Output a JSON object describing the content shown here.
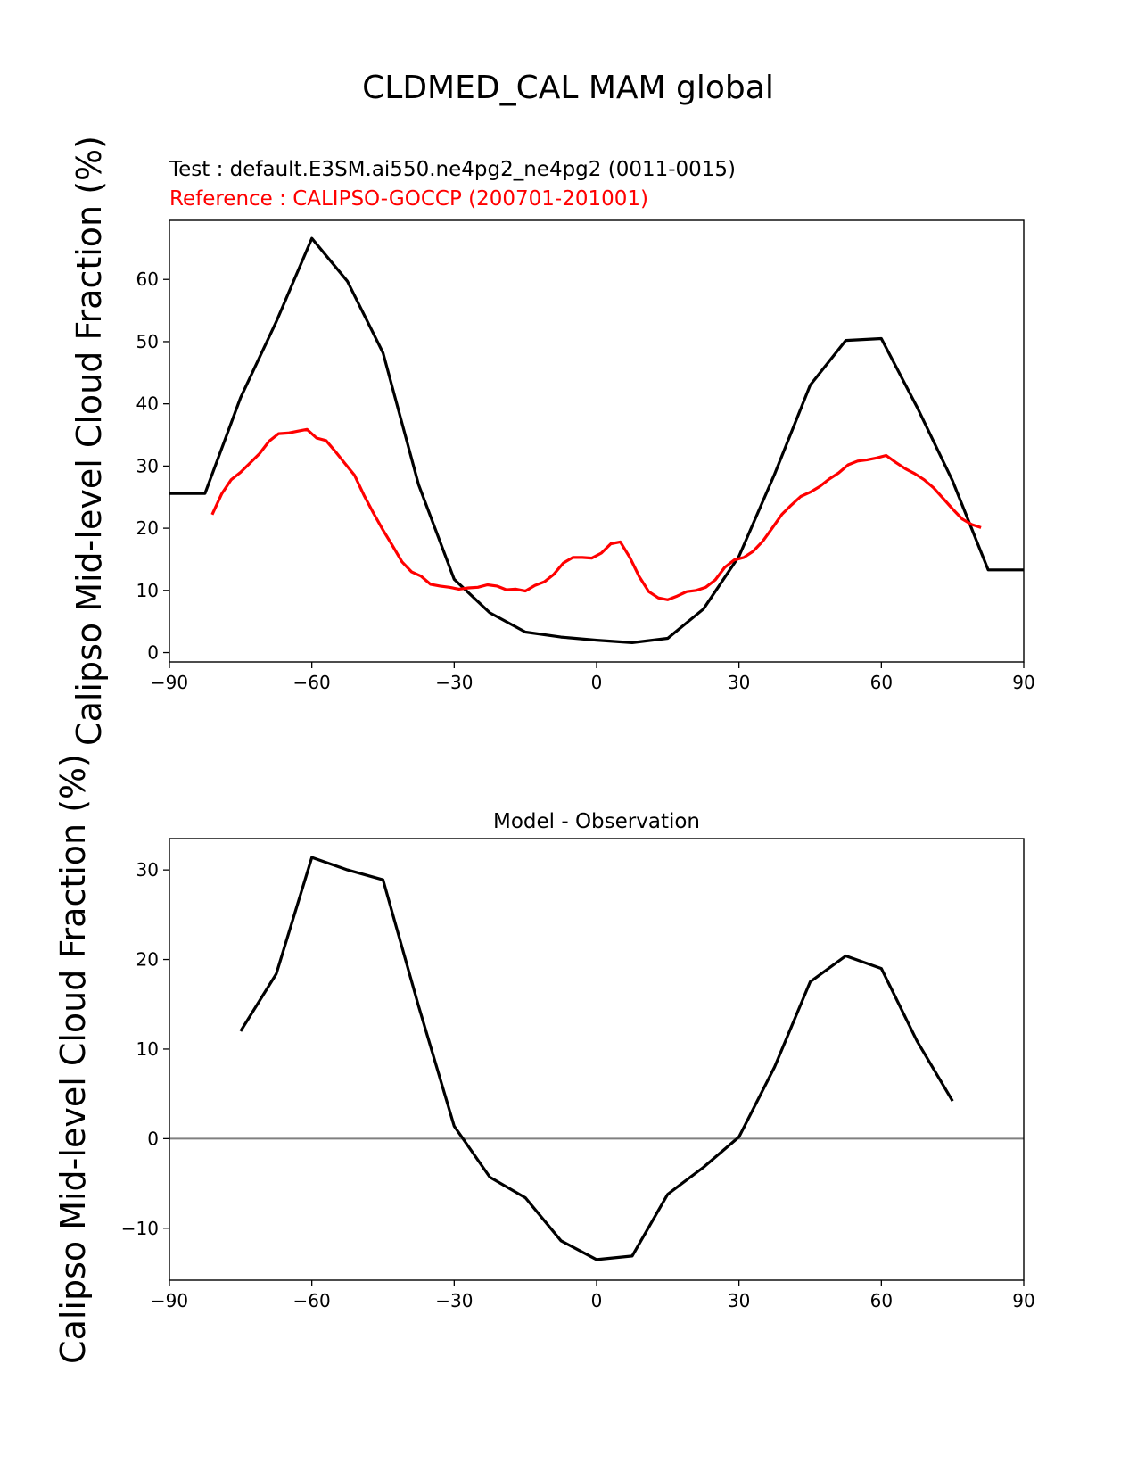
{
  "figure": {
    "title": "CLDMED_CAL MAM global",
    "test_label": "Test : default.E3SM.ai550.ne4pg2_ne4pg2 (0011-0015)",
    "reference_label": "Reference : CALIPSO-GOCCP (200701-201001)"
  },
  "colors": {
    "test": "#000000",
    "reference": "#ff0000",
    "zero_line": "#808080",
    "text": "#000000",
    "reference_text": "#ff0000"
  },
  "chart_data": [
    {
      "type": "line",
      "title": "",
      "ylabel": "Calipso Mid-level Cloud Fraction (%)",
      "xlabel": "",
      "xlim": [
        -90,
        90
      ],
      "ylim": [
        -1.5,
        69.5
      ],
      "xticks": [
        -90,
        -60,
        -30,
        0,
        30,
        60,
        90
      ],
      "xtick_labels": [
        "−90",
        "−60",
        "−30",
        "0",
        "30",
        "60",
        "90"
      ],
      "yticks": [
        0,
        10,
        20,
        30,
        40,
        50,
        60
      ],
      "ytick_labels": [
        "0",
        "10",
        "20",
        "30",
        "40",
        "50",
        "60"
      ],
      "grid": false,
      "series": [
        {
          "role": "test",
          "x": [
            -90,
            -82.5,
            -75,
            -67.5,
            -60,
            -52.5,
            -45,
            -37.5,
            -30,
            -22.5,
            -15,
            -7.5,
            0,
            7.5,
            15,
            22.5,
            30,
            37.5,
            45,
            52.5,
            60,
            67.5,
            75,
            82.5,
            90
          ],
          "y": [
            25.6,
            25.6,
            41.0,
            53.2,
            66.6,
            59.7,
            48.2,
            27.0,
            11.8,
            6.4,
            3.3,
            2.5,
            2.0,
            1.6,
            2.3,
            7.0,
            15.5,
            28.7,
            43.0,
            50.2,
            50.5,
            39.5,
            27.6,
            13.3,
            13.3
          ]
        },
        {
          "role": "reference",
          "x": [
            -81,
            -79,
            -77,
            -75,
            -73,
            -71,
            -69,
            -67,
            -65,
            -63,
            -61,
            -59,
            -57,
            -55,
            -53,
            -51,
            -49,
            -47,
            -45,
            -43,
            -41,
            -39,
            -37,
            -35,
            -33,
            -31,
            -29,
            -27,
            -25,
            -23,
            -21,
            -19,
            -17,
            -15,
            -13,
            -11,
            -9,
            -7,
            -5,
            -3,
            -1,
            1,
            3,
            5,
            7,
            9,
            11,
            13,
            15,
            17,
            19,
            21,
            23,
            25,
            27,
            29,
            31,
            33,
            35,
            37,
            39,
            41,
            43,
            45,
            47,
            49,
            51,
            53,
            55,
            57,
            59,
            61,
            63,
            65,
            67,
            69,
            71,
            73,
            75,
            77,
            79,
            81
          ],
          "y": [
            22.2,
            25.5,
            27.8,
            29.0,
            30.5,
            32.0,
            34.0,
            35.2,
            35.3,
            35.6,
            35.9,
            34.5,
            34.1,
            32.3,
            30.4,
            28.5,
            25.3,
            22.4,
            19.7,
            17.2,
            14.6,
            13.0,
            12.3,
            11.0,
            10.7,
            10.5,
            10.2,
            10.4,
            10.5,
            10.9,
            10.7,
            10.1,
            10.2,
            9.9,
            10.8,
            11.4,
            12.6,
            14.4,
            15.3,
            15.3,
            15.2,
            16.0,
            17.5,
            17.8,
            15.3,
            12.2,
            9.8,
            8.8,
            8.5,
            9.1,
            9.8,
            10.0,
            10.5,
            11.7,
            13.7,
            14.9,
            15.3,
            16.3,
            17.9,
            20.0,
            22.2,
            23.7,
            25.1,
            25.8,
            26.7,
            27.9,
            28.9,
            30.2,
            30.8,
            31.0,
            31.3,
            31.7,
            30.6,
            29.6,
            28.8,
            27.8,
            26.5,
            24.8,
            23.1,
            21.5,
            20.6,
            20.1
          ]
        }
      ]
    },
    {
      "type": "line",
      "title": "Model - Observation",
      "ylabel": "Calipso Mid-level Cloud Fraction (%)",
      "xlabel": "",
      "xlim": [
        -90,
        90
      ],
      "ylim": [
        -15.8,
        33.5
      ],
      "xticks": [
        -90,
        -60,
        -30,
        0,
        30,
        60,
        90
      ],
      "xtick_labels": [
        "−90",
        "−60",
        "−30",
        "0",
        "30",
        "60",
        "90"
      ],
      "yticks": [
        -10,
        0,
        10,
        20,
        30
      ],
      "ytick_labels": [
        "−10",
        "0",
        "10",
        "20",
        "30"
      ],
      "grid": false,
      "zero_line": 0,
      "series": [
        {
          "role": "difference",
          "x": [
            -75,
            -67.5,
            -60,
            -52.5,
            -45,
            -37.5,
            -30,
            -22.5,
            -15,
            -7.5,
            0,
            7.5,
            15,
            22.5,
            30,
            37.5,
            45,
            52.5,
            60,
            67.5,
            75
          ],
          "y": [
            12.0,
            18.4,
            31.4,
            30.0,
            28.9,
            14.8,
            1.4,
            -4.3,
            -6.6,
            -11.4,
            -13.5,
            -13.1,
            -6.2,
            -3.2,
            0.2,
            8.0,
            17.5,
            20.4,
            19.0,
            10.9,
            4.2
          ]
        }
      ]
    }
  ]
}
